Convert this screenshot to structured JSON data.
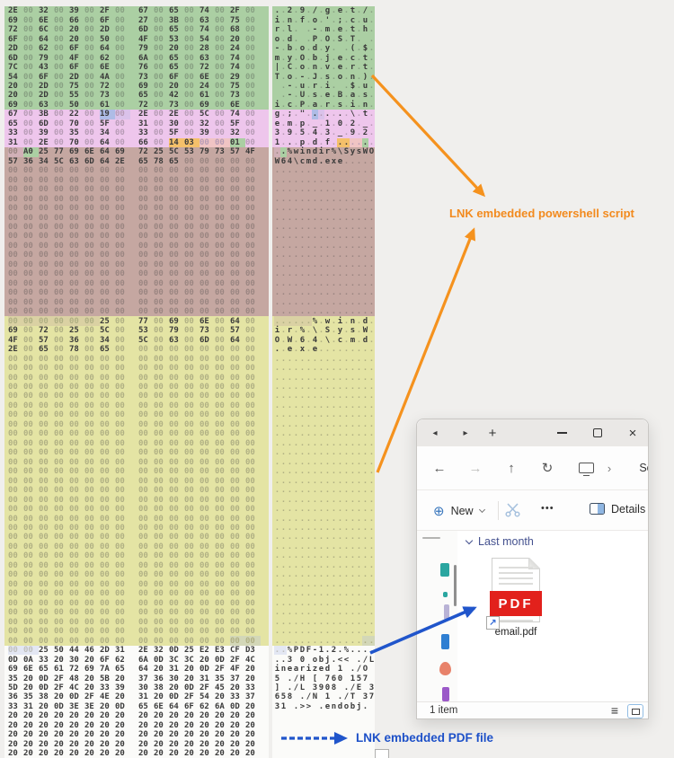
{
  "hexdump": {
    "colors": {
      "green": "#abcfa3",
      "pink": "#eec6ec",
      "brown": "#c5a7a1",
      "yellow": "#e4e4a4",
      "white": "#fbfbf9",
      "blue": "#aebce6",
      "orange": "#f5c06a"
    },
    "rows": [
      {
        "bg": "green",
        "hex": "2E 00 32 00 39 00 2F 00 67 00 65 00 74 00 2F 00"
      },
      {
        "bg": "green",
        "hex": "69 00 6E 00 66 00 6F 00 27 00 3B 00 63 00 75 00"
      },
      {
        "bg": "green",
        "hex": "72 00 6C 00 20 00 2D 00 6D 00 65 00 74 00 68 00"
      },
      {
        "bg": "green",
        "hex": "6F 00 64 00 20 00 50 00 4F 00 53 00 54 00 20 00"
      },
      {
        "bg": "green",
        "hex": "2D 00 62 00 6F 00 64 00 79 00 20 00 28 00 24 00"
      },
      {
        "bg": "green",
        "hex": "6D 00 79 00 4F 00 62 00 6A 00 65 00 63 00 74 00"
      },
      {
        "bg": "green",
        "hex": "7C 00 43 00 6F 00 6E 00 76 00 65 00 72 00 74 00"
      },
      {
        "bg": "green",
        "hex": "54 00 6F 00 2D 00 4A 00 73 00 6F 00 6E 00 29 00"
      },
      {
        "bg": "green",
        "hex": "20 00 2D 00 75 00 72 00 69 00 20 00 24 00 75 00"
      },
      {
        "bg": "green",
        "hex": "20 00 2D 00 55 00 73 00 65 00 42 00 61 00 73 00"
      },
      {
        "bg": "green",
        "hex": "69 00 63 00 50 00 61 00 72 00 73 00 69 00 6E 00"
      },
      {
        "bg": "pink",
        "hex": "67 00 3B 00 22 00 19 00 2E 00 2E 00 5C 00 74 00",
        "hl": {
          "6": "blue",
          "7": "blue"
        }
      },
      {
        "bg": "pink",
        "hex": "65 00 6D 00 70 00 5F 00 31 00 30 00 32 00 5F 00"
      },
      {
        "bg": "pink",
        "hex": "33 00 39 00 35 00 34 00 33 00 5F 00 39 00 32 00"
      },
      {
        "bg": "pink",
        "hex": "31 00 2E 00 70 00 64 00 66 00 14 03 00 00 01 00",
        "hl": {
          "10": "orange",
          "11": "orange",
          "12": "orange",
          "13": "orange",
          "14": "green"
        }
      },
      {
        "bg": "brown",
        "hex": "00 A0 25 77 69 6E 64 69 72 25 5C 53 79 73 57 4F",
        "hl": {
          "0": "pink",
          "1": "green"
        }
      },
      {
        "bg": "brown",
        "hex": "57 36 34 5C 63 6D 64 2E 65 78 65 00 00 00 00 00"
      },
      {
        "bg": "brown",
        "fill": "00",
        "repeat": 16
      },
      {
        "bg": "yellow",
        "hex": "00 00 00 00 00 00 25 00 77 00 69 00 6E 00 64 00",
        "hl": {
          "0": "brown",
          "1": "brown",
          "2": "brown",
          "3": "brown",
          "4": "brown",
          "5": "brown"
        }
      },
      {
        "bg": "yellow",
        "hex": "69 00 72 00 25 00 5C 00 53 00 79 00 73 00 57 00"
      },
      {
        "bg": "yellow",
        "hex": "4F 00 57 00 36 00 34 00 5C 00 63 00 6D 00 64 00"
      },
      {
        "bg": "yellow",
        "hex": "2E 00 65 00 78 00 65 00 00 00 00 00 00 00 00 00"
      },
      {
        "bg": "yellow",
        "fill": "00",
        "repeat": 30
      },
      {
        "bg": "yellow",
        "fill": "00",
        "hl": {
          "14": "blue",
          "15": "blue"
        }
      },
      {
        "bg": "white",
        "hex": "00 00 25 50 44 46 2D 31 2E 32 0D 25 E2 E3 CF D3",
        "hl": {
          "0": "blue",
          "1": "blue"
        }
      },
      {
        "bg": "white",
        "hex": "0D 0A 33 20 30 20 6F 62 6A 0D 3C 3C 20 0D 2F 4C"
      },
      {
        "bg": "white",
        "hex": "69 6E 65 61 72 69 7A 65 64 20 31 20 0D 2F 4F 20"
      },
      {
        "bg": "white",
        "hex": "35 20 0D 2F 48 20 5B 20 37 36 30 20 31 35 37 20"
      },
      {
        "bg": "white",
        "hex": "5D 20 0D 2F 4C 20 33 39 30 38 20 0D 2F 45 20 33"
      },
      {
        "bg": "white",
        "hex": "36 35 38 20 0D 2F 4E 20 31 20 0D 2F 54 20 33 37"
      },
      {
        "bg": "white",
        "hex": "33 31 20 0D 3E 3E 20 0D 65 6E 64 6F 62 6A 0D 20"
      },
      {
        "bg": "white",
        "fill": "20",
        "repeat": 5
      }
    ]
  },
  "annotations": {
    "powershell": {
      "label": "LNK embedded powershell script",
      "color": "#f28a1e"
    },
    "pdf": {
      "label": "LNK embedded PDF file",
      "color": "#1d50c8"
    }
  },
  "explorer": {
    "tabbar": {
      "back": "◂",
      "forward": "▸",
      "new_tab": "+",
      "close": "×"
    },
    "navbar": {
      "back": "←",
      "forward": "→",
      "up": "↑",
      "refresh": "↻",
      "breadcrumb_chevron": "›",
      "search_fragment": "Se"
    },
    "toolbar": {
      "new_icon": "⊕",
      "new_label": "New",
      "more": "•••",
      "details_label": "Details"
    },
    "content": {
      "group_label": "Last month",
      "file_name": "email.pdf",
      "pdf_badge": "PDF",
      "shortcut_arrow": "↗"
    },
    "statusbar": {
      "items_count": "1 item",
      "list_view_icon": "≡"
    }
  }
}
